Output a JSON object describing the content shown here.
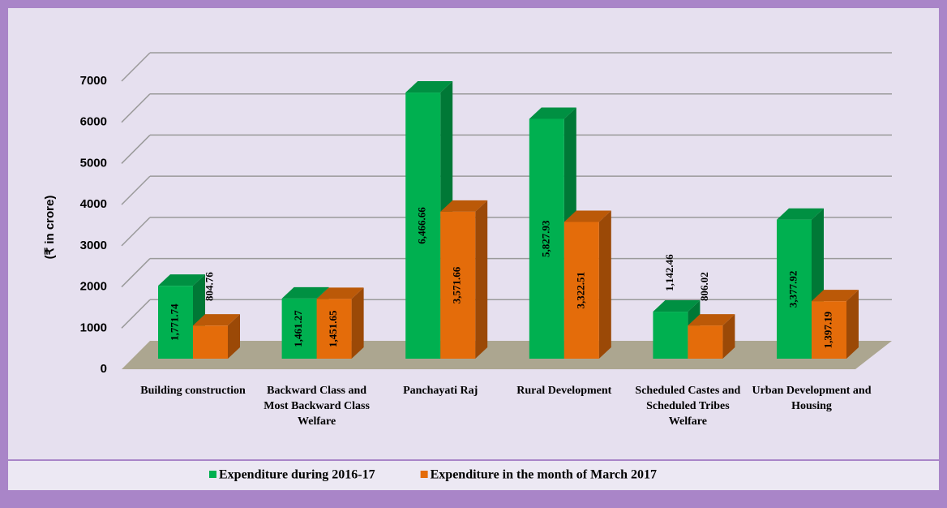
{
  "chart_data": {
    "type": "bar3d",
    "y_label": "(₹ in crore)",
    "categories": [
      "Building construction",
      "Backward Class and Most Backward Class Welfare",
      "Panchayati Raj",
      "Rural Development",
      "Scheduled Castes and Scheduled Tribes Welfare",
      "Urban Development and Housing"
    ],
    "series": [
      {
        "name": "Expenditure during 2016-17",
        "color": "#00b050",
        "values": [
          1771.74,
          1461.27,
          6466.66,
          5827.93,
          1142.46,
          3377.92
        ],
        "value_labels": [
          "1,771.74",
          "1,461.27",
          "6,466.66",
          "5,827.93",
          "1,142.46",
          "3,377.92"
        ]
      },
      {
        "name": "Expenditure in the month of March 2017",
        "color": "#e46c0a",
        "values": [
          804.76,
          1451.65,
          3571.66,
          3322.51,
          806.02,
          1397.19
        ],
        "value_labels": [
          "804.76",
          "1,451.65",
          "3,571.66",
          "3,322.51",
          "806.02",
          "1,397.19"
        ]
      }
    ],
    "ylim": [
      0,
      7000
    ],
    "yticks": [
      0,
      1000,
      2000,
      3000,
      4000,
      5000,
      6000,
      7000
    ],
    "grid": true,
    "legend": "bottom"
  }
}
